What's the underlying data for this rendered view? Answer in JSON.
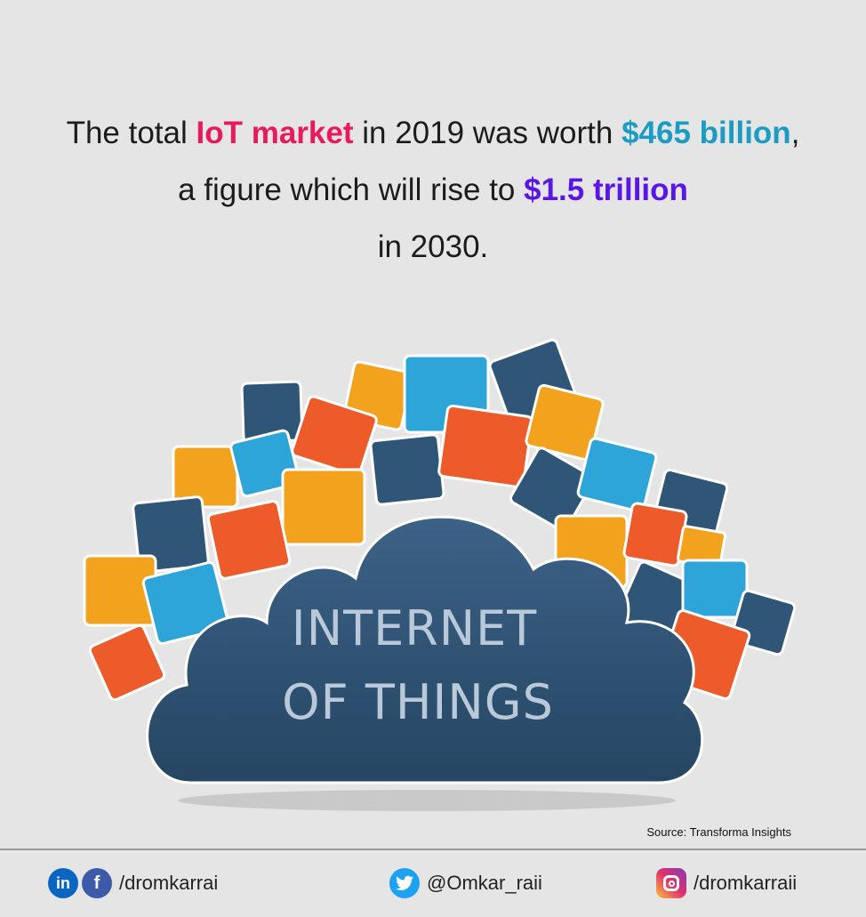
{
  "headline": {
    "lines": [
      [
        {
          "text": "The total ",
          "color": "#1c1c1c"
        },
        {
          "text": "IoT market",
          "color": "#e8195e"
        },
        {
          "text": " in 2019 was worth ",
          "color": "#1c1c1c"
        },
        {
          "text": "$465 billion",
          "color": "#1b9cc2"
        },
        {
          "text": ",",
          "color": "#1c1c1c"
        }
      ],
      [
        {
          "text": "a figure which will rise to ",
          "color": "#1c1c1c"
        },
        {
          "text": "$1.5 trillion",
          "color": "#5a16e6"
        }
      ],
      [
        {
          "text": "in 2030.",
          "color": "#1c1c1c"
        }
      ]
    ]
  },
  "cloud": {
    "line1": "INTERNET",
    "line2": "OF THINGS"
  },
  "source": {
    "label": "Source:",
    "name": "Transforma Insights"
  },
  "footer": {
    "linkedin_icon": "in",
    "facebook_icon": "f",
    "facebook_handle": "/dromkarrai",
    "twitter_handle": "@Omkar_raii",
    "instagram_handle": "/dromkarraii"
  }
}
